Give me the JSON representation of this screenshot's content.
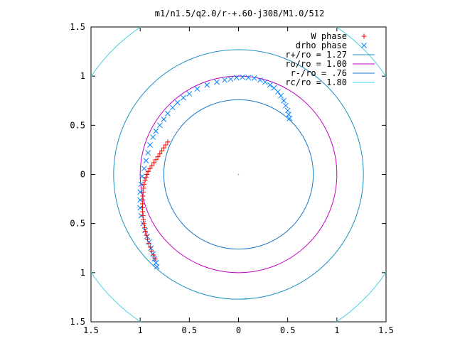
{
  "chart_data": {
    "type": "scatter",
    "title": "m1/n1.5/q2.0/r-+.60-j308/M1.0/512",
    "xlim": [
      -1.5,
      1.5
    ],
    "ylim": [
      -1.5,
      1.5
    ],
    "x_ticks": [
      {
        "value": -1.5,
        "label": "1.5"
      },
      {
        "value": -1.0,
        "label": "1"
      },
      {
        "value": -0.5,
        "label": "0.5"
      },
      {
        "value": 0.0,
        "label": "0"
      },
      {
        "value": 0.5,
        "label": "0.5"
      },
      {
        "value": 1.0,
        "label": "1"
      },
      {
        "value": 1.5,
        "label": "1.5"
      }
    ],
    "y_ticks": [
      {
        "value": 1.5,
        "label": "1.5"
      },
      {
        "value": 1.0,
        "label": "1"
      },
      {
        "value": 0.5,
        "label": "0.5"
      },
      {
        "value": 0.0,
        "label": "0"
      },
      {
        "value": -0.5,
        "label": "0.5"
      },
      {
        "value": -1.0,
        "label": "1"
      },
      {
        "value": -1.5,
        "label": "1.5"
      }
    ],
    "grid": false,
    "legend_position": "top-right",
    "legend": [
      {
        "label": "W phase",
        "kind": "marker",
        "marker": "plus",
        "color": "#ff0000"
      },
      {
        "label": "drho phase",
        "kind": "marker",
        "marker": "cross",
        "color": "#0080ff"
      },
      {
        "label": "r+/ro = 1.27",
        "kind": "line",
        "color": "#1e90c0"
      },
      {
        "label": "ro/ro = 1.00",
        "kind": "line",
        "color": "#c000c0"
      },
      {
        "label": "r-/ro = .76",
        "kind": "line",
        "color": "#1e78c8"
      },
      {
        "label": "rc/ro = 1.80",
        "kind": "line",
        "color": "#40d0e0"
      }
    ],
    "circles": [
      {
        "name": "r+/ro = 1.27",
        "radius": 1.27,
        "color": "#1e90c0"
      },
      {
        "name": "ro/ro = 1.00",
        "radius": 1.0,
        "color": "#c000c0"
      },
      {
        "name": "r-/ro = .76",
        "radius": 0.76,
        "color": "#1e78c8"
      },
      {
        "name": "rc/ro = 1.80",
        "radius": 1.8,
        "color": "#40d0e0"
      }
    ],
    "series": [
      {
        "name": "W phase",
        "marker": "plus",
        "color": "#ff0000",
        "x": [
          -0.72,
          -0.74,
          -0.76,
          -0.78,
          -0.8,
          -0.82,
          -0.84,
          -0.86,
          -0.88,
          -0.9,
          -0.92,
          -0.93,
          -0.94,
          -0.95,
          -0.96,
          -0.965,
          -0.97,
          -0.972,
          -0.974,
          -0.975,
          -0.976,
          -0.975,
          -0.972,
          -0.968,
          -0.962,
          -0.955,
          -0.946,
          -0.936,
          -0.925,
          -0.912,
          -0.898,
          -0.883,
          -0.866,
          -0.85
        ],
        "y": [
          0.33,
          0.3,
          0.27,
          0.24,
          0.21,
          0.18,
          0.15,
          0.12,
          0.09,
          0.06,
          0.03,
          0.0,
          -0.03,
          -0.06,
          -0.1,
          -0.14,
          -0.18,
          -0.22,
          -0.26,
          -0.3,
          -0.34,
          -0.38,
          -0.42,
          -0.46,
          -0.5,
          -0.54,
          -0.58,
          -0.62,
          -0.66,
          -0.7,
          -0.74,
          -0.78,
          -0.82,
          -0.86
        ]
      },
      {
        "name": "drho phase",
        "marker": "cross",
        "color": "#0080ff",
        "x": [
          0.52,
          0.51,
          0.5,
          0.48,
          0.46,
          0.43,
          0.4,
          0.36,
          0.32,
          0.27,
          0.22,
          0.16,
          0.1,
          0.04,
          -0.02,
          -0.08,
          -0.14,
          -0.22,
          -0.32,
          -0.42,
          -0.5,
          -0.56,
          -0.62,
          -0.67,
          -0.72,
          -0.76,
          -0.8,
          -0.84,
          -0.87,
          -0.9,
          -0.92,
          -0.94,
          -0.96,
          -0.98,
          -0.99,
          -1.0,
          -1.0,
          -1.0,
          -0.99,
          -0.97,
          -0.95,
          -0.93,
          -0.91,
          -0.89,
          -0.87,
          -0.855,
          -0.84,
          -0.83
        ],
        "y": [
          0.57,
          0.61,
          0.65,
          0.7,
          0.75,
          0.8,
          0.84,
          0.88,
          0.91,
          0.94,
          0.96,
          0.98,
          0.985,
          0.99,
          0.985,
          0.97,
          0.96,
          0.94,
          0.91,
          0.87,
          0.82,
          0.78,
          0.73,
          0.68,
          0.62,
          0.56,
          0.5,
          0.44,
          0.38,
          0.3,
          0.22,
          0.14,
          0.06,
          -0.02,
          -0.1,
          -0.18,
          -0.26,
          -0.34,
          -0.42,
          -0.5,
          -0.57,
          -0.63,
          -0.69,
          -0.75,
          -0.81,
          -0.86,
          -0.9,
          -0.94
        ]
      }
    ]
  }
}
